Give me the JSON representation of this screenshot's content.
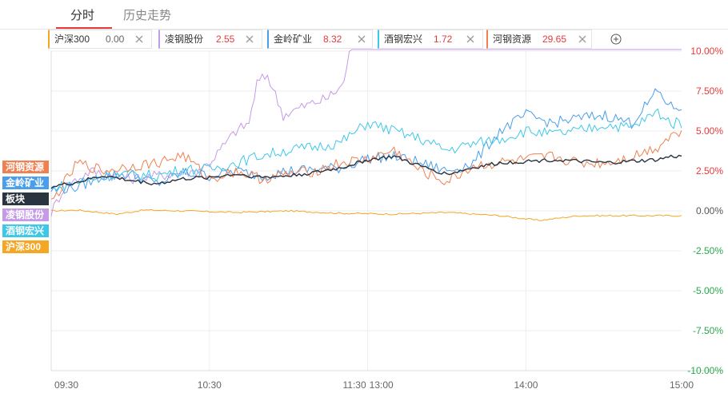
{
  "tabs": [
    {
      "label": "分时",
      "active": true
    },
    {
      "label": "历史走势",
      "active": false
    }
  ],
  "chips": [
    {
      "name": "沪深300",
      "value": "0.00",
      "color": "#f5a623",
      "value_color": "#666666"
    },
    {
      "name": "凌钢股份",
      "value": "2.55",
      "color": "#c59ae8",
      "value_color": "#e63a3a"
    },
    {
      "name": "金岭矿业",
      "value": "8.32",
      "color": "#4a9eea",
      "value_color": "#e63a3a"
    },
    {
      "name": "酒钢宏兴",
      "value": "1.72",
      "color": "#3ec8e8",
      "value_color": "#e63a3a"
    },
    {
      "name": "河钢资源",
      "value": "29.65",
      "color": "#f08050",
      "value_color": "#e63a3a"
    }
  ],
  "legend_labels": [
    {
      "label": "河钢资源",
      "color": "#f08050"
    },
    {
      "label": "金岭矿业",
      "color": "#4a9eea"
    },
    {
      "label": "板块",
      "color": "#2a3340"
    },
    {
      "label": "凌钢股份",
      "color": "#c59ae8"
    },
    {
      "label": "酒钢宏兴",
      "color": "#3ec8e8"
    },
    {
      "label": "沪深300",
      "color": "#f5a623"
    }
  ],
  "chart_data": {
    "type": "line",
    "x_ticks": [
      "09:30",
      "10:30",
      "11:30",
      "13:00",
      "14:00",
      "15:00"
    ],
    "y_ticks": [
      "10.00%",
      "7.50%",
      "5.00%",
      "2.50%",
      "0.00%",
      "-2.50%",
      "-5.00%",
      "-7.50%",
      "-10.00%"
    ],
    "y_tick_values": [
      10,
      7.5,
      5,
      2.5,
      0,
      -2.5,
      -5,
      -7.5,
      -10
    ],
    "ylim": [
      -10,
      10
    ],
    "x_count": 240,
    "series": [
      {
        "name": "沪深300",
        "color": "#f5a623",
        "points": [
          [
            0,
            0
          ],
          [
            10,
            0.05
          ],
          [
            25,
            -0.2
          ],
          [
            35,
            0.05
          ],
          [
            50,
            0
          ],
          [
            70,
            -0.1
          ],
          [
            90,
            0
          ],
          [
            110,
            -0.15
          ],
          [
            130,
            -0.2
          ],
          [
            150,
            -0.1
          ],
          [
            170,
            -0.3
          ],
          [
            185,
            -0.6
          ],
          [
            200,
            -0.3
          ],
          [
            220,
            -0.3
          ],
          [
            239,
            -0.3
          ]
        ]
      },
      {
        "name": "凌钢股份",
        "color": "#c59ae8",
        "points": [
          [
            0,
            -0.1
          ],
          [
            5,
            1.5
          ],
          [
            15,
            2.5
          ],
          [
            30,
            2
          ],
          [
            40,
            2.2
          ],
          [
            55,
            2.5
          ],
          [
            60,
            3
          ],
          [
            65,
            4
          ],
          [
            70,
            5
          ],
          [
            75,
            5.5
          ],
          [
            78,
            8
          ],
          [
            82,
            8.5
          ],
          [
            88,
            6
          ],
          [
            95,
            6.5
          ],
          [
            100,
            6.8
          ],
          [
            104,
            7
          ],
          [
            108,
            7.5
          ],
          [
            111,
            8
          ],
          [
            113,
            10.1
          ],
          [
            150,
            10.1
          ],
          [
            239,
            10.1
          ]
        ]
      },
      {
        "name": "金岭矿业",
        "color": "#4a9eea",
        "points": [
          [
            0,
            1.3
          ],
          [
            10,
            1.5
          ],
          [
            20,
            2.2
          ],
          [
            30,
            2.3
          ],
          [
            40,
            1.7
          ],
          [
            50,
            2.4
          ],
          [
            60,
            2.2
          ],
          [
            70,
            2.5
          ],
          [
            80,
            2.2
          ],
          [
            90,
            2.5
          ],
          [
            100,
            2.6
          ],
          [
            110,
            2.7
          ],
          [
            120,
            3.3
          ],
          [
            130,
            3.4
          ],
          [
            140,
            3
          ],
          [
            150,
            2.5
          ],
          [
            160,
            3
          ],
          [
            170,
            5
          ],
          [
            180,
            6
          ],
          [
            190,
            5.5
          ],
          [
            200,
            5.8
          ],
          [
            210,
            6
          ],
          [
            220,
            5.5
          ],
          [
            230,
            7.5
          ],
          [
            235,
            6.5
          ],
          [
            239,
            6.5
          ]
        ]
      },
      {
        "name": "酒钢宏兴",
        "color": "#3ec8e8",
        "points": [
          [
            0,
            1.4
          ],
          [
            10,
            1.8
          ],
          [
            20,
            2.2
          ],
          [
            30,
            2.3
          ],
          [
            40,
            2.2
          ],
          [
            50,
            2.6
          ],
          [
            60,
            2.6
          ],
          [
            70,
            3
          ],
          [
            80,
            3.5
          ],
          [
            90,
            3.8
          ],
          [
            100,
            4
          ],
          [
            110,
            4.3
          ],
          [
            120,
            5.5
          ],
          [
            130,
            5
          ],
          [
            140,
            4.5
          ],
          [
            150,
            3.8
          ],
          [
            160,
            4.2
          ],
          [
            170,
            4.5
          ],
          [
            180,
            5
          ],
          [
            190,
            4.8
          ],
          [
            200,
            5
          ],
          [
            210,
            5.4
          ],
          [
            220,
            5.2
          ],
          [
            230,
            6.2
          ],
          [
            235,
            5.5
          ],
          [
            239,
            5.5
          ]
        ]
      },
      {
        "name": "河钢资源",
        "color": "#f08050",
        "points": [
          [
            0,
            0.5
          ],
          [
            10,
            3
          ],
          [
            20,
            2.5
          ],
          [
            30,
            2.8
          ],
          [
            40,
            3
          ],
          [
            50,
            3.5
          ],
          [
            60,
            2
          ],
          [
            70,
            2.5
          ],
          [
            80,
            2
          ],
          [
            90,
            2.3
          ],
          [
            100,
            2.5
          ],
          [
            110,
            3
          ],
          [
            120,
            3.2
          ],
          [
            130,
            3.8
          ],
          [
            140,
            2.5
          ],
          [
            150,
            1.8
          ],
          [
            160,
            2.8
          ],
          [
            170,
            3
          ],
          [
            180,
            3.2
          ],
          [
            190,
            3.4
          ],
          [
            200,
            3
          ],
          [
            210,
            3
          ],
          [
            220,
            3.4
          ],
          [
            230,
            4
          ],
          [
            235,
            4.8
          ],
          [
            239,
            4.8
          ]
        ]
      },
      {
        "name": "板块",
        "color": "#2a3340",
        "points": [
          [
            0,
            1.5
          ],
          [
            10,
            1.8
          ],
          [
            20,
            2.2
          ],
          [
            30,
            1.9
          ],
          [
            40,
            1.7
          ],
          [
            50,
            2
          ],
          [
            60,
            2.1
          ],
          [
            70,
            2.3
          ],
          [
            80,
            2.1
          ],
          [
            90,
            2.2
          ],
          [
            100,
            2.4
          ],
          [
            110,
            2.7
          ],
          [
            120,
            3.2
          ],
          [
            130,
            3.4
          ],
          [
            140,
            2.8
          ],
          [
            150,
            2.3
          ],
          [
            160,
            2.7
          ],
          [
            170,
            3
          ],
          [
            180,
            3.1
          ],
          [
            190,
            3.2
          ],
          [
            200,
            3.1
          ],
          [
            210,
            3
          ],
          [
            220,
            3.1
          ],
          [
            230,
            3.2
          ],
          [
            235,
            3.4
          ],
          [
            239,
            3.4
          ]
        ]
      }
    ]
  }
}
